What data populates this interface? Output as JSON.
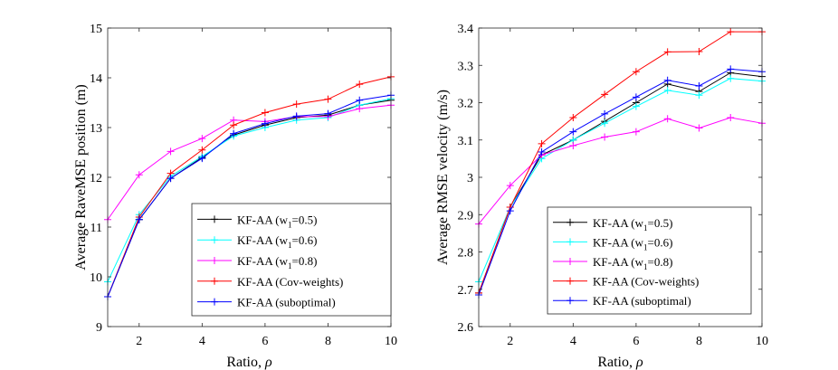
{
  "figure_title": "",
  "chart_data": [
    {
      "type": "line",
      "title": "",
      "xlabel_text": "Ratio, ",
      "xlabel_symbol": "ρ",
      "ylabel": "Average RaveMSE position (m)",
      "xlim": [
        1,
        10
      ],
      "ylim": [
        9,
        15
      ],
      "xticks": [
        2,
        4,
        6,
        8,
        10
      ],
      "yticks": [
        9,
        10,
        11,
        12,
        13,
        14,
        15
      ],
      "grid": false,
      "legend_position": "bottom-right",
      "x": [
        1,
        2,
        3,
        4,
        5,
        6,
        7,
        8,
        9,
        10
      ],
      "series": [
        {
          "name": "KF-AA (w1=0.5)",
          "label_main": "KF-AA (w",
          "label_sub": "1",
          "label_tail": "=0.5)",
          "color": "#000000",
          "values": [
            9.6,
            11.15,
            11.98,
            12.4,
            12.85,
            13.05,
            13.2,
            13.25,
            13.45,
            13.55
          ]
        },
        {
          "name": "KF-AA (w1=0.6)",
          "label_main": "KF-AA (w",
          "label_sub": "1",
          "label_tail": "=0.6)",
          "color": "#00ffff",
          "values": [
            9.9,
            11.25,
            12.02,
            12.42,
            12.83,
            13.0,
            13.15,
            13.2,
            13.45,
            13.58
          ]
        },
        {
          "name": "KF-AA (w1=0.8)",
          "label_main": "KF-AA (w",
          "label_sub": "1",
          "label_tail": "=0.8)",
          "color": "#ff00ff",
          "values": [
            11.15,
            12.05,
            12.52,
            12.78,
            13.15,
            13.12,
            13.22,
            13.22,
            13.38,
            13.45
          ]
        },
        {
          "name": "KF-AA (Cov-weights)",
          "label_main": "KF-AA (Cov-weights)",
          "label_sub": "",
          "label_tail": "",
          "color": "#ff0000",
          "values": [
            9.6,
            11.2,
            12.08,
            12.55,
            13.05,
            13.3,
            13.47,
            13.57,
            13.87,
            14.02
          ]
        },
        {
          "name": "KF-AA (suboptimal)",
          "label_main": "KF-AA (suboptimal)",
          "label_sub": "",
          "label_tail": "",
          "color": "#0000ff",
          "values": [
            9.6,
            11.15,
            11.98,
            12.38,
            12.88,
            13.08,
            13.23,
            13.28,
            13.55,
            13.65
          ]
        }
      ]
    },
    {
      "type": "line",
      "title": "",
      "xlabel_text": "Ratio, ",
      "xlabel_symbol": "ρ",
      "ylabel": "Average RMSE velocity (m/s)",
      "xlim": [
        1,
        10
      ],
      "ylim": [
        2.6,
        3.4
      ],
      "xticks": [
        2,
        4,
        6,
        8,
        10
      ],
      "yticks": [
        2.6,
        2.7,
        2.8,
        2.9,
        3,
        3.1,
        3.2,
        3.3,
        3.4
      ],
      "grid": false,
      "legend_position": "bottom-right",
      "x": [
        1,
        2,
        3,
        4,
        5,
        6,
        7,
        8,
        9,
        10
      ],
      "series": [
        {
          "name": "KF-AA (w1=0.5)",
          "label_main": "KF-AA (w",
          "label_sub": "1",
          "label_tail": "=0.5)",
          "color": "#000000",
          "values": [
            2.69,
            2.92,
            3.06,
            3.1,
            3.15,
            3.2,
            3.25,
            3.23,
            3.28,
            3.27
          ]
        },
        {
          "name": "KF-AA (w1=0.6)",
          "label_main": "KF-AA (w",
          "label_sub": "1",
          "label_tail": "=0.6)",
          "color": "#00ffff",
          "values": [
            2.72,
            2.92,
            3.05,
            3.1,
            3.145,
            3.19,
            3.233,
            3.22,
            3.265,
            3.258
          ]
        },
        {
          "name": "KF-AA (w1=0.8)",
          "label_main": "KF-AA (w",
          "label_sub": "1",
          "label_tail": "=0.8)",
          "color": "#ff00ff",
          "values": [
            2.875,
            2.978,
            3.06,
            3.085,
            3.108,
            3.122,
            3.157,
            3.132,
            3.16,
            3.145
          ]
        },
        {
          "name": "KF-AA (Cov-weights)",
          "label_main": "KF-AA (Cov-weights)",
          "label_sub": "",
          "label_tail": "",
          "color": "#ff0000",
          "values": [
            2.69,
            2.92,
            3.09,
            3.16,
            3.222,
            3.283,
            3.336,
            3.337,
            3.39,
            3.39
          ]
        },
        {
          "name": "KF-AA (suboptimal)",
          "label_main": "KF-AA (suboptimal)",
          "label_sub": "",
          "label_tail": "",
          "color": "#0000ff",
          "values": [
            2.685,
            2.91,
            3.068,
            3.122,
            3.17,
            3.215,
            3.26,
            3.245,
            3.29,
            3.283
          ]
        }
      ]
    }
  ]
}
